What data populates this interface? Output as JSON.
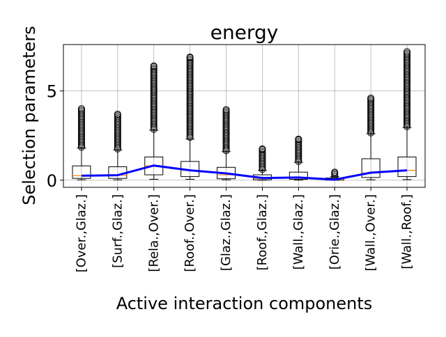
{
  "chart_data": {
    "type": "box",
    "title": "energy",
    "xlabel": "Active interaction components",
    "ylabel": "Selection parameters",
    "ylim": [
      -0.4,
      7.6
    ],
    "yticks": [
      0,
      5
    ],
    "grid": true,
    "categories": [
      "[Over.,Glaz.]",
      "[Surf.,Glaz.]",
      "[Rela.,Over.]",
      "[Roof.,Over.]",
      "[Glaz.,Glaz.]",
      "[Roof.,Glaz.]",
      "[Wall.,Glaz.]",
      "[Orie.,Glaz.]",
      "[Wall.,Over.]",
      "[Wall.,Roof.]"
    ],
    "boxes": [
      {
        "whisker_low": 0.02,
        "q1": 0.1,
        "median": 0.25,
        "q3": 0.8,
        "whisker_high": 1.8,
        "outlier_min": 1.85,
        "outlier_max": 4.0
      },
      {
        "whisker_low": 0.02,
        "q1": 0.1,
        "median": 0.28,
        "q3": 0.75,
        "whisker_high": 1.7,
        "outlier_min": 1.75,
        "outlier_max": 3.7
      },
      {
        "whisker_low": 0.05,
        "q1": 0.3,
        "median": 0.8,
        "q3": 1.3,
        "whisker_high": 2.8,
        "outlier_min": 2.85,
        "outlier_max": 6.4
      },
      {
        "whisker_low": 0.05,
        "q1": 0.2,
        "median": 0.55,
        "q3": 1.05,
        "whisker_high": 2.3,
        "outlier_min": 2.4,
        "outlier_max": 6.9
      },
      {
        "whisker_low": 0.02,
        "q1": 0.08,
        "median": 0.3,
        "q3": 0.72,
        "whisker_high": 1.6,
        "outlier_min": 1.65,
        "outlier_max": 3.95
      },
      {
        "whisker_low": 0.0,
        "q1": 0.02,
        "median": 0.1,
        "q3": 0.3,
        "whisker_high": 0.55,
        "outlier_min": 0.6,
        "outlier_max": 1.75
      },
      {
        "whisker_low": 0.0,
        "q1": 0.05,
        "median": 0.12,
        "q3": 0.45,
        "whisker_high": 1.0,
        "outlier_min": 1.05,
        "outlier_max": 2.3
      },
      {
        "whisker_low": 0.0,
        "q1": 0.0,
        "median": 0.03,
        "q3": 0.12,
        "whisker_high": 0.2,
        "outlier_min": 0.22,
        "outlier_max": 0.45
      },
      {
        "whisker_low": 0.02,
        "q1": 0.15,
        "median": 0.4,
        "q3": 1.2,
        "whisker_high": 2.6,
        "outlier_min": 2.65,
        "outlier_max": 4.6
      },
      {
        "whisker_low": 0.03,
        "q1": 0.2,
        "median": 0.55,
        "q3": 1.3,
        "whisker_high": 2.95,
        "outlier_min": 3.0,
        "outlier_max": 7.2
      }
    ],
    "mean_line": {
      "values": [
        0.25,
        0.28,
        0.82,
        0.55,
        0.38,
        0.12,
        0.15,
        0.03,
        0.42,
        0.55
      ]
    },
    "colors": {
      "box": "#000000",
      "median": "#ff7f0e",
      "mean_line": "#0000ff",
      "grid": "#b0b0b0",
      "outlier": "#000000"
    }
  }
}
